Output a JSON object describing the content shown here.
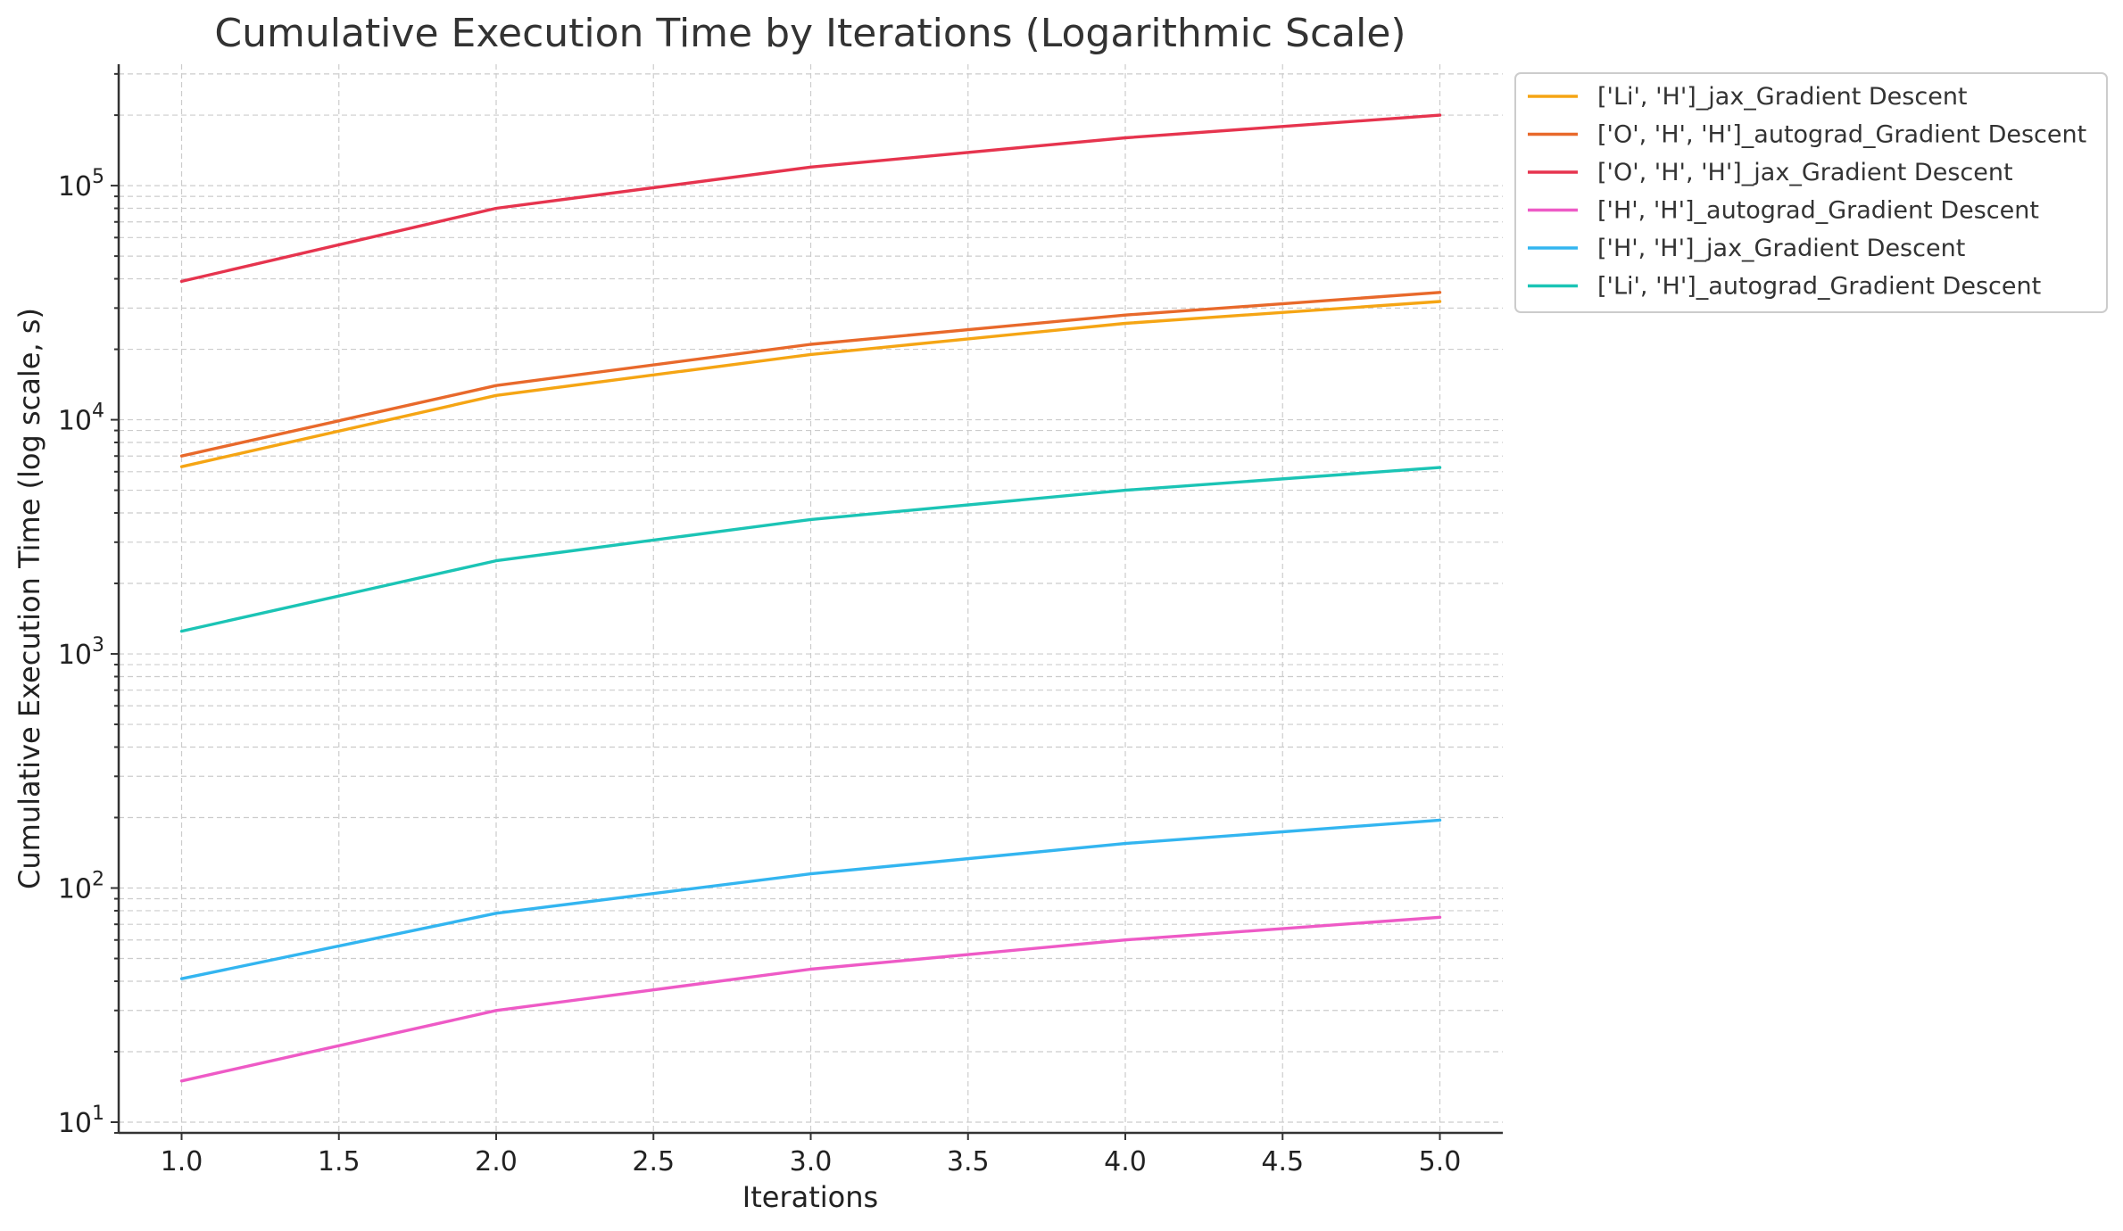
{
  "chart_data": {
    "type": "line",
    "title": "Cumulative Execution Time by Iterations (Logarithmic Scale)",
    "xlabel": "Iterations",
    "ylabel": "Cumulative Execution Time (log scale, s)",
    "x": [
      1,
      2,
      3,
      4,
      5
    ],
    "xlim": [
      0.8,
      5.2
    ],
    "ylim": [
      9,
      330000
    ],
    "yscale": "log",
    "x_ticks": [
      "1.0",
      "1.5",
      "2.0",
      "2.5",
      "3.0",
      "3.5",
      "4.0",
      "4.5",
      "5.0"
    ],
    "y_ticks": [
      {
        "base": "10",
        "exp": "1"
      },
      {
        "base": "10",
        "exp": "2"
      },
      {
        "base": "10",
        "exp": "3"
      },
      {
        "base": "10",
        "exp": "4"
      },
      {
        "base": "10",
        "exp": "5"
      }
    ],
    "grid": true,
    "legend_position": "outside-right",
    "series": [
      {
        "name": "['Li', 'H']_jax_Gradient Descent",
        "color": "#F5A514",
        "values": [
          6300,
          12700,
          19000,
          25800,
          32000
        ]
      },
      {
        "name": "['O', 'H', 'H']_autograd_Gradient Descent",
        "color": "#E8692B",
        "values": [
          7000,
          14000,
          21000,
          28000,
          35000
        ]
      },
      {
        "name": "['O', 'H', 'H']_jax_Gradient Descent",
        "color": "#E6344E",
        "values": [
          39000,
          80000,
          120000,
          160000,
          200000
        ]
      },
      {
        "name": "['H', 'H']_autograd_Gradient Descent",
        "color": "#EE5AC6",
        "values": [
          15,
          30,
          45,
          60,
          75
        ]
      },
      {
        "name": "['H', 'H']_jax_Gradient Descent",
        "color": "#33B5F0",
        "values": [
          41,
          78,
          115,
          155,
          195
        ]
      },
      {
        "name": "['Li', 'H']_autograd_Gradient Descent",
        "color": "#1BC4B5",
        "values": [
          1250,
          2500,
          3750,
          5000,
          6250
        ]
      }
    ]
  }
}
